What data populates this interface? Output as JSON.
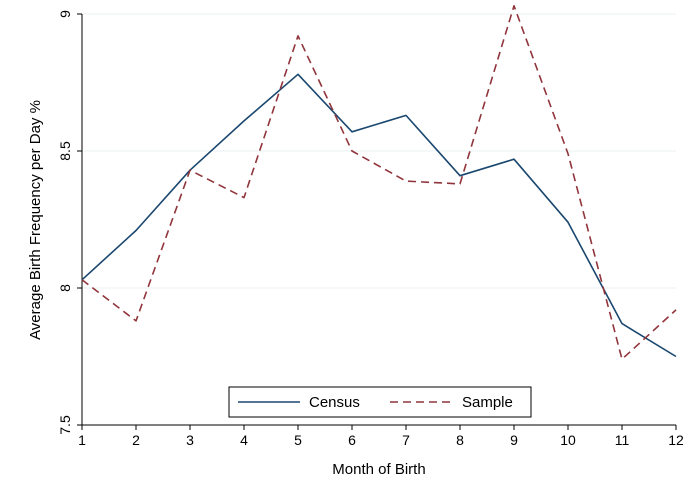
{
  "chart_data": {
    "type": "line",
    "title": "",
    "xlabel": "Month of Birth",
    "ylabel": "Average Birth Frequency per Day %",
    "x": [
      1,
      2,
      3,
      4,
      5,
      6,
      7,
      8,
      9,
      10,
      11,
      12
    ],
    "xticks": [
      "1",
      "2",
      "3",
      "4",
      "5",
      "6",
      "7",
      "8",
      "9",
      "10",
      "11",
      "12"
    ],
    "yticks": [
      "7.5",
      "8",
      "8.5",
      "9"
    ],
    "ytick_values": [
      7.5,
      8,
      8.5,
      9
    ],
    "xlim": [
      1,
      12
    ],
    "ylim": [
      7.5,
      9
    ],
    "grid": true,
    "legend_position": "bottom-center",
    "series": [
      {
        "name": "Census",
        "style": "solid",
        "color": "#1a476f",
        "values": [
          8.03,
          8.21,
          8.43,
          8.61,
          8.78,
          8.57,
          8.63,
          8.41,
          8.47,
          8.24,
          7.87,
          7.75
        ]
      },
      {
        "name": "Sample",
        "style": "dashed",
        "color": "#90353b",
        "values": [
          8.03,
          7.88,
          8.43,
          8.33,
          8.92,
          8.5,
          8.39,
          8.38,
          9.03,
          8.49,
          7.74,
          7.92
        ]
      }
    ]
  }
}
